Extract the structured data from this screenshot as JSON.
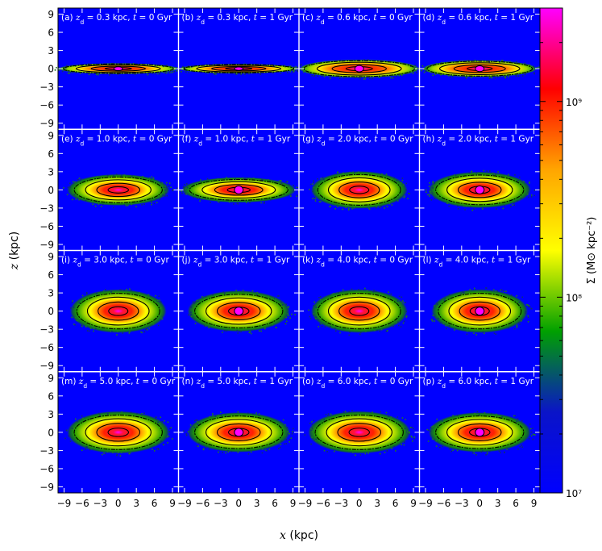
{
  "chart_data": {
    "type": "heatmap",
    "title": "",
    "layout": {
      "rows": 4,
      "cols": 4
    },
    "xlabel": "x (kpc)",
    "ylabel": "z (kpc)",
    "xlim": [
      -10,
      10
    ],
    "ylim": [
      -10,
      10
    ],
    "x_ticks": [
      -9,
      -6,
      -3,
      0,
      3,
      6,
      9
    ],
    "y_ticks": [
      -9,
      -6,
      -3,
      0,
      3,
      6,
      9
    ],
    "tick_labels": {
      "x": [
        "−9",
        "−6",
        "−3",
        "0",
        "3",
        "6",
        "9"
      ],
      "y": [
        "−9",
        "−6",
        "−3",
        "0",
        "3",
        "6",
        "9"
      ]
    },
    "axis_titles": {
      "x_var": "x",
      "x_unit": " (kpc)",
      "y_var": "z",
      "y_unit": " (kpc)"
    },
    "colorbar": {
      "label": "Σ (M⊙ kpc⁻²)",
      "scale": "log",
      "range": [
        10000000.0,
        3000000000.0
      ],
      "major_ticks": [
        10000000.0,
        100000000.0,
        1000000000.0
      ],
      "major_labels": [
        "10⁷",
        "10⁸",
        "10⁹"
      ],
      "colors": [
        "#0000ff",
        "#0a14c8",
        "#00a000",
        "#ffff00",
        "#ffa500",
        "#ff0000",
        "#ff00ff"
      ]
    },
    "background_color": "#0000ff",
    "contour_color": "#000000",
    "panels": [
      {
        "label": "(a)",
        "zd": 0.3,
        "t": 0,
        "zd_text": "0.3",
        "t_text": "0",
        "half_length": 10.0,
        "half_height": 0.9,
        "core_peak": true
      },
      {
        "label": "(b)",
        "zd": 0.3,
        "t": 1,
        "zd_text": "0.3",
        "t_text": "1",
        "half_length": 10.0,
        "half_height": 0.8,
        "core_peak": true
      },
      {
        "label": "(c)",
        "zd": 0.6,
        "t": 0,
        "zd_text": "0.6",
        "t_text": "0",
        "half_length": 10.0,
        "half_height": 1.5,
        "core_peak": true
      },
      {
        "label": "(d)",
        "zd": 0.6,
        "t": 1,
        "zd_text": "0.6",
        "t_text": "1",
        "half_length": 9.5,
        "half_height": 1.4,
        "core_peak": true
      },
      {
        "label": "(e)",
        "zd": 1.0,
        "t": 0,
        "zd_text": "1.0",
        "t_text": "0",
        "half_length": 8.5,
        "half_height": 2.6,
        "core_peak": false
      },
      {
        "label": "(f)",
        "zd": 1.0,
        "t": 1,
        "zd_text": "1.0",
        "t_text": "1",
        "half_length": 9.5,
        "half_height": 2.1,
        "core_peak": true
      },
      {
        "label": "(g)",
        "zd": 2.0,
        "t": 0,
        "zd_text": "2.0",
        "t_text": "0",
        "half_length": 8.0,
        "half_height": 3.1,
        "core_peak": false
      },
      {
        "label": "(h)",
        "zd": 2.0,
        "t": 1,
        "zd_text": "2.0",
        "t_text": "1",
        "half_length": 8.5,
        "half_height": 3.0,
        "core_peak": true
      },
      {
        "label": "(i)",
        "zd": 3.0,
        "t": 0,
        "zd_text": "3.0",
        "t_text": "0",
        "half_length": 8.0,
        "half_height": 3.6,
        "core_peak": false
      },
      {
        "label": "(j)",
        "zd": 3.0,
        "t": 1,
        "zd_text": "3.0",
        "t_text": "1",
        "half_length": 8.5,
        "half_height": 3.4,
        "core_peak": true
      },
      {
        "label": "(k)",
        "zd": 4.0,
        "t": 0,
        "zd_text": "4.0",
        "t_text": "0",
        "half_length": 8.0,
        "half_height": 3.6,
        "core_peak": false
      },
      {
        "label": "(l)",
        "zd": 4.0,
        "t": 1,
        "zd_text": "4.0",
        "t_text": "1",
        "half_length": 8.0,
        "half_height": 3.6,
        "core_peak": true
      },
      {
        "label": "(m)",
        "zd": 5.0,
        "t": 0,
        "zd_text": "5.0",
        "t_text": "0",
        "half_length": 8.5,
        "half_height": 3.5,
        "core_peak": false
      },
      {
        "label": "(n)",
        "zd": 5.0,
        "t": 1,
        "zd_text": "5.0",
        "t_text": "1",
        "half_length": 8.5,
        "half_height": 3.3,
        "core_peak": true
      },
      {
        "label": "(o)",
        "zd": 6.0,
        "t": 0,
        "zd_text": "6.0",
        "t_text": "0",
        "half_length": 8.5,
        "half_height": 3.5,
        "core_peak": false
      },
      {
        "label": "(p)",
        "zd": 6.0,
        "t": 1,
        "zd_text": "6.0",
        "t_text": "1",
        "half_length": 8.5,
        "half_height": 3.3,
        "core_peak": true
      }
    ],
    "label_text": {
      "kpc": " kpc, ",
      "gyr": " Gyr",
      "eq": " = "
    }
  }
}
